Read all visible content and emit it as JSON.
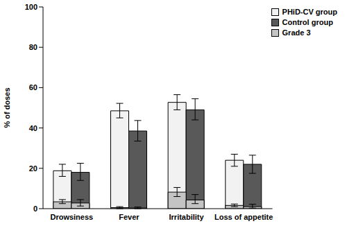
{
  "chart_data": {
    "type": "bar",
    "y_label": "% of doses",
    "categories": [
      "Drowsiness",
      "Fever",
      "Irritability",
      "Loss of appetite"
    ],
    "ylim": [
      0,
      100
    ],
    "yticks": [
      0,
      20,
      40,
      60,
      80,
      100
    ],
    "grid": false,
    "legend": "upper right",
    "series": [
      {
        "name": "PHiD-CV group",
        "color": "#f2f2f2",
        "values": [
          18.8,
          48.5,
          52.7,
          24
        ],
        "errors": [
          [
            2.8,
            3.2
          ],
          [
            3.5,
            3.7
          ],
          [
            3.7,
            3.8
          ],
          [
            3,
            3
          ]
        ],
        "grade_3": {
          "values": [
            3.4,
            0.5,
            8.2,
            1.6
          ],
          "errors": [
            [
              0.9,
              1.1
            ],
            [
              0.5,
              0.5
            ],
            [
              2.2,
              2.3
            ],
            [
              0.6,
              0.7
            ]
          ]
        }
      },
      {
        "name": "Control group",
        "color": "#595959",
        "values": [
          18,
          38.5,
          49,
          22
        ],
        "errors": [
          [
            4,
            4.5
          ],
          [
            5,
            5.2
          ],
          [
            5,
            5.5
          ],
          [
            4.5,
            4.5
          ]
        ],
        "grade_3": {
          "values": [
            2.8,
            0.3,
            4.3,
            1
          ],
          "errors": [
            [
              1.5,
              1.7
            ],
            [
              0.3,
              0.5
            ],
            [
              1.8,
              2.7
            ],
            [
              0.7,
              1.2
            ]
          ]
        }
      }
    ],
    "overlay": {
      "name": "Grade 3",
      "color": "#c4c4c4"
    }
  }
}
